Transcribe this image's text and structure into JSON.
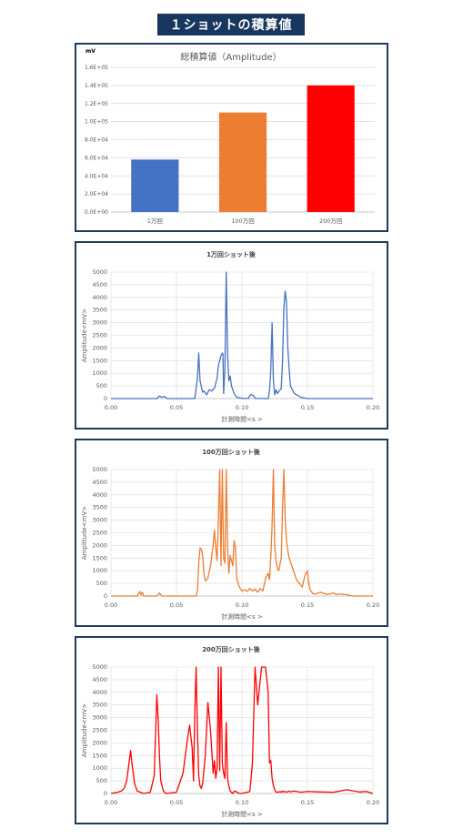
{
  "header": {
    "title": "１ショットの積算値"
  },
  "chart_data": [
    {
      "type": "bar",
      "title": "総積算値（Amplitude）",
      "unit_label": "mV",
      "categories": [
        "1万回",
        "100万回",
        "200万回"
      ],
      "values": [
        58000,
        110000,
        140000
      ],
      "colors": [
        "#4472c4",
        "#ed7d31",
        "#ff0000"
      ],
      "ylim": [
        0,
        160000
      ],
      "yticks": [
        "0.0E+00",
        "2.0E+04",
        "4.0E+04",
        "6.0E+04",
        "8.0E+04",
        "1.0E+05",
        "1.2E+05",
        "1.4E+05",
        "1.6E+05"
      ],
      "grid": true
    },
    {
      "type": "line",
      "title": "1万回ショット後",
      "xlabel": "計測時間<s >",
      "ylabel": "Amplitude<mV>",
      "xlim": [
        0,
        0.2
      ],
      "ylim": [
        0,
        5000
      ],
      "xticks": [
        "0.00",
        "0.05",
        "0.10",
        "0.15",
        "0.20"
      ],
      "yticks": [
        "0",
        "500",
        "1000",
        "1500",
        "2000",
        "2500",
        "3000",
        "3500",
        "4000",
        "4500",
        "5000"
      ],
      "color": "#4472c4",
      "x": [
        0,
        0.035,
        0.037,
        0.039,
        0.041,
        0.043,
        0.064,
        0.066,
        0.067,
        0.068,
        0.07,
        0.071,
        0.073,
        0.075,
        0.077,
        0.079,
        0.081,
        0.082,
        0.083,
        0.084,
        0.085,
        0.0855,
        0.086,
        0.087,
        0.088,
        0.089,
        0.09,
        0.091,
        0.092,
        0.094,
        0.096,
        0.098,
        0.1,
        0.105,
        0.106,
        0.107,
        0.109,
        0.11,
        0.12,
        0.121,
        0.122,
        0.123,
        0.124,
        0.125,
        0.126,
        0.127,
        0.13,
        0.131,
        0.132,
        0.133,
        0.134,
        0.135,
        0.136,
        0.137,
        0.14,
        0.145,
        0.15,
        0.2
      ],
      "values": [
        0,
        0,
        100,
        50,
        80,
        0,
        0,
        800,
        1800,
        700,
        250,
        300,
        150,
        350,
        300,
        420,
        800,
        1300,
        1500,
        1700,
        1800,
        1750,
        200,
        1200,
        5000,
        1800,
        700,
        900,
        500,
        200,
        50,
        30,
        10,
        10,
        120,
        160,
        100,
        10,
        0,
        300,
        1100,
        3000,
        700,
        150,
        350,
        200,
        400,
        1500,
        3600,
        4250,
        3800,
        2000,
        1200,
        500,
        200,
        50,
        0,
        0
      ],
      "grid": true
    },
    {
      "type": "line",
      "title": "100万回ショット後",
      "xlabel": "計測時間<s >",
      "ylabel": "Amplitude<mV>",
      "xlim": [
        0,
        0.2
      ],
      "ylim": [
        0,
        5000
      ],
      "xticks": [
        "0.00",
        "0.05",
        "0.10",
        "0.15",
        "0.20"
      ],
      "yticks": [
        "0",
        "500",
        "1000",
        "1500",
        "2000",
        "2500",
        "3000",
        "3500",
        "4000",
        "4500",
        "5000"
      ],
      "color": "#ed7d31",
      "x": [
        0,
        0.02,
        0.022,
        0.023,
        0.024,
        0.025,
        0.035,
        0.037,
        0.039,
        0.065,
        0.066,
        0.067,
        0.068,
        0.069,
        0.07,
        0.071,
        0.072,
        0.074,
        0.076,
        0.078,
        0.079,
        0.08,
        0.081,
        0.082,
        0.083,
        0.084,
        0.085,
        0.086,
        0.087,
        0.088,
        0.089,
        0.09,
        0.091,
        0.092,
        0.093,
        0.094,
        0.095,
        0.096,
        0.098,
        0.1,
        0.102,
        0.104,
        0.106,
        0.108,
        0.11,
        0.112,
        0.114,
        0.116,
        0.118,
        0.12,
        0.121,
        0.122,
        0.123,
        0.124,
        0.125,
        0.126,
        0.127,
        0.128,
        0.13,
        0.131,
        0.132,
        0.133,
        0.134,
        0.135,
        0.136,
        0.138,
        0.14,
        0.142,
        0.144,
        0.146,
        0.148,
        0.15,
        0.151,
        0.152,
        0.154,
        0.156,
        0.16,
        0.165,
        0.17,
        0.172,
        0.174,
        0.18,
        0.185,
        0.2
      ],
      "values": [
        0,
        0,
        180,
        50,
        150,
        0,
        0,
        120,
        0,
        0,
        200,
        1300,
        1900,
        1850,
        1600,
        900,
        600,
        700,
        1200,
        2000,
        2600,
        1900,
        1400,
        3000,
        5000,
        1200,
        5000,
        1500,
        1300,
        5000,
        2000,
        900,
        1600,
        1400,
        1200,
        2200,
        1900,
        700,
        350,
        200,
        250,
        180,
        300,
        200,
        280,
        150,
        300,
        200,
        700,
        900,
        650,
        1500,
        2800,
        5000,
        2000,
        1400,
        1100,
        1000,
        1500,
        3500,
        5000,
        3000,
        2200,
        1800,
        1500,
        1200,
        900,
        600,
        500,
        350,
        800,
        1000,
        500,
        250,
        100,
        80,
        150,
        60,
        120,
        60,
        80,
        50,
        0,
        0
      ],
      "grid": true
    },
    {
      "type": "line",
      "title": "200万回ショット後",
      "xlabel": "計測時間<s >",
      "ylabel": "Amplitude<mV>",
      "xlim": [
        0,
        0.2
      ],
      "ylim": [
        0,
        5000
      ],
      "xticks": [
        "0.00",
        "0.05",
        "0.10",
        "0.15",
        "0.20"
      ],
      "yticks": [
        "0",
        "500",
        "1000",
        "1500",
        "2000",
        "2500",
        "3000",
        "3500",
        "4000",
        "4500",
        "5000"
      ],
      "color": "#ff0000",
      "x": [
        0,
        0.005,
        0.008,
        0.01,
        0.012,
        0.014,
        0.015,
        0.016,
        0.018,
        0.02,
        0.025,
        0.03,
        0.033,
        0.035,
        0.036,
        0.037,
        0.038,
        0.04,
        0.042,
        0.05,
        0.055,
        0.058,
        0.06,
        0.062,
        0.063,
        0.064,
        0.065,
        0.066,
        0.067,
        0.068,
        0.069,
        0.07,
        0.072,
        0.074,
        0.076,
        0.078,
        0.079,
        0.08,
        0.081,
        0.082,
        0.083,
        0.084,
        0.085,
        0.086,
        0.087,
        0.088,
        0.089,
        0.09,
        0.091,
        0.092,
        0.093,
        0.094,
        0.095,
        0.096,
        0.098,
        0.1,
        0.102,
        0.104,
        0.106,
        0.108,
        0.11,
        0.112,
        0.115,
        0.118,
        0.12,
        0.121,
        0.122,
        0.123,
        0.124,
        0.125,
        0.126,
        0.127,
        0.128,
        0.129,
        0.13,
        0.131,
        0.132,
        0.133,
        0.134,
        0.135,
        0.136,
        0.137,
        0.138,
        0.14,
        0.145,
        0.15,
        0.16,
        0.17,
        0.18,
        0.19,
        0.195,
        0.2
      ],
      "values": [
        0,
        50,
        100,
        200,
        500,
        1300,
        1700,
        1200,
        400,
        100,
        0,
        50,
        700,
        3900,
        3000,
        1500,
        500,
        100,
        0,
        50,
        800,
        2000,
        2700,
        1800,
        500,
        3200,
        5000,
        2500,
        700,
        300,
        200,
        400,
        1500,
        3600,
        2500,
        800,
        1300,
        600,
        1000,
        5000,
        900,
        5000,
        1200,
        800,
        600,
        2800,
        600,
        300,
        100,
        50,
        0,
        80,
        100,
        50,
        0,
        0,
        30,
        50,
        80,
        1200,
        5000,
        3500,
        5000,
        5000,
        4000,
        1200,
        1300,
        600,
        300,
        150,
        50,
        60,
        50,
        80,
        50,
        100,
        60,
        80,
        50,
        70,
        100,
        60,
        80,
        100,
        50,
        80,
        60,
        50,
        150,
        60,
        80,
        0
      ],
      "grid": true
    }
  ]
}
